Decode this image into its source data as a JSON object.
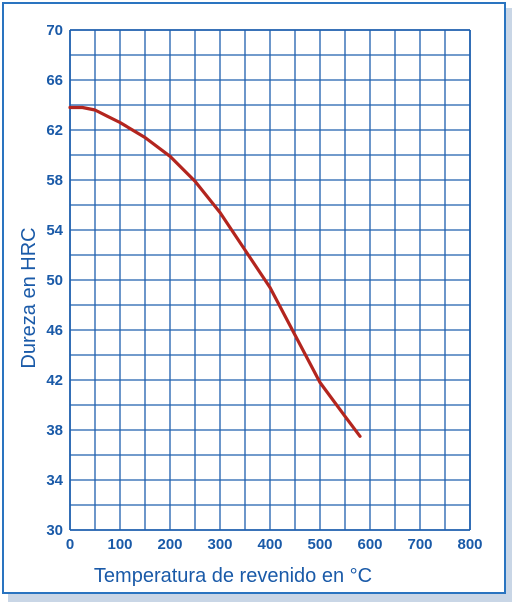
{
  "colors": {
    "border": "#2a74c0",
    "grid": "#1e5fae",
    "text": "#1a5aa8",
    "curve": "#b3251e",
    "background": "#ffffff"
  },
  "chart_data": {
    "type": "line",
    "title": "",
    "xlabel": "Temperatura de revenido en °C",
    "ylabel": "Dureza en HRC",
    "xlim": [
      0,
      800
    ],
    "ylim": [
      30,
      70
    ],
    "x_ticks": [
      0,
      100,
      200,
      300,
      400,
      500,
      600,
      700,
      800
    ],
    "y_ticks": [
      30,
      34,
      38,
      42,
      46,
      50,
      54,
      58,
      62,
      66,
      70
    ],
    "x_grid_step": 50,
    "y_grid_step": 2,
    "grid": true,
    "legend": "none",
    "series": [
      {
        "x": [
          0,
          25,
          50,
          75,
          100,
          150,
          200,
          250,
          300,
          350,
          400,
          450,
          500,
          550,
          580
        ],
        "y": [
          63.8,
          63.8,
          63.6,
          63.1,
          62.6,
          61.4,
          59.9,
          57.9,
          55.4,
          52.4,
          49.4,
          45.6,
          41.8,
          39.1,
          37.5
        ]
      }
    ]
  }
}
